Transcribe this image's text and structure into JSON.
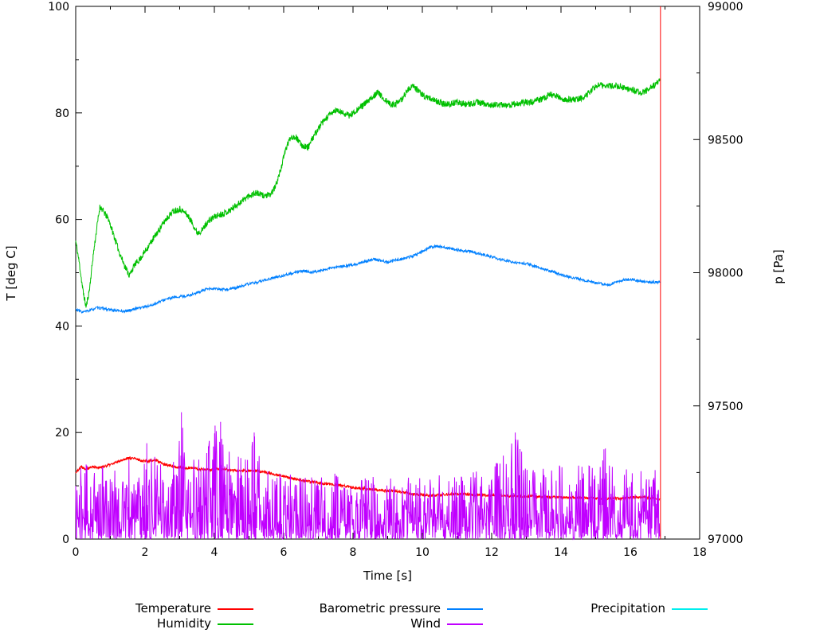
{
  "chart_data": {
    "type": "line",
    "title": "",
    "xlabel": "Time [s]",
    "ylabel": "T [deg C]",
    "y2label": "p [Pa]",
    "x_range": [
      0,
      18
    ],
    "y_range": [
      0,
      100
    ],
    "y2_range": [
      97000,
      99000
    ],
    "x_major_ticks": [
      0,
      2,
      4,
      6,
      8,
      10,
      12,
      14,
      16,
      18
    ],
    "x_minor_step": 1,
    "y_major_ticks": [
      0,
      20,
      40,
      60,
      80,
      100
    ],
    "y_minor_step": 10,
    "y2_major_ticks": [
      97000,
      97500,
      98000,
      98500,
      99000
    ],
    "y2_minor_step": 250,
    "grid": false,
    "legend_position": "below",
    "series": [
      {
        "name": "Temperature",
        "color": "#ff0000",
        "axis": "y",
        "type": "control",
        "seed": 22,
        "step": 0.008,
        "noise": 0.25,
        "points": [
          [
            0,
            12.5
          ],
          [
            0.15,
            13.6
          ],
          [
            0.3,
            13.2
          ],
          [
            0.5,
            13.6
          ],
          [
            0.7,
            13.4
          ],
          [
            0.9,
            13.8
          ],
          [
            1.1,
            14.2
          ],
          [
            1.3,
            14.8
          ],
          [
            1.5,
            15.2
          ],
          [
            1.7,
            15.1
          ],
          [
            1.9,
            14.7
          ],
          [
            2.1,
            14.6
          ],
          [
            2.3,
            14.9
          ],
          [
            2.5,
            14.1
          ],
          [
            2.7,
            13.8
          ],
          [
            2.9,
            13.5
          ],
          [
            3.1,
            13.3
          ],
          [
            3.3,
            13.4
          ],
          [
            3.5,
            13.2
          ],
          [
            3.7,
            13.1
          ],
          [
            3.9,
            13.0
          ],
          [
            4.1,
            13.2
          ],
          [
            4.3,
            13.1
          ],
          [
            4.5,
            12.9
          ],
          [
            4.7,
            12.8
          ],
          [
            4.9,
            12.8
          ],
          [
            5.1,
            12.8
          ],
          [
            5.3,
            12.7
          ],
          [
            5.6,
            12.4
          ],
          [
            5.9,
            11.9
          ],
          [
            6.2,
            11.4
          ],
          [
            6.5,
            11.0
          ],
          [
            6.8,
            10.8
          ],
          [
            7.1,
            10.5
          ],
          [
            7.4,
            10.2
          ],
          [
            7.7,
            10.0
          ],
          [
            8.0,
            9.7
          ],
          [
            8.3,
            9.5
          ],
          [
            8.6,
            9.3
          ],
          [
            8.9,
            9.1
          ],
          [
            9.2,
            9.0
          ],
          [
            9.5,
            8.7
          ],
          [
            9.8,
            8.4
          ],
          [
            10.1,
            8.2
          ],
          [
            10.4,
            8.2
          ],
          [
            10.7,
            8.4
          ],
          [
            11.0,
            8.5
          ],
          [
            11.3,
            8.4
          ],
          [
            11.6,
            8.3
          ],
          [
            11.9,
            8.2
          ],
          [
            12.2,
            8.2
          ],
          [
            12.5,
            8.1
          ],
          [
            12.8,
            8.0
          ],
          [
            13.2,
            8.0
          ],
          [
            13.6,
            7.9
          ],
          [
            14.0,
            7.8
          ],
          [
            14.4,
            7.8
          ],
          [
            14.8,
            7.7
          ],
          [
            15.2,
            7.6
          ],
          [
            15.6,
            7.6
          ],
          [
            16.0,
            7.8
          ],
          [
            16.3,
            7.9
          ],
          [
            16.6,
            7.7
          ],
          [
            16.85,
            7.5
          ]
        ]
      },
      {
        "name": "Humidity",
        "color": "#00c000",
        "axis": "y",
        "type": "control",
        "seed": 11,
        "step": 0.008,
        "noise": 0.6,
        "points": [
          [
            0,
            56
          ],
          [
            0.1,
            52
          ],
          [
            0.2,
            47
          ],
          [
            0.3,
            43.5
          ],
          [
            0.4,
            47
          ],
          [
            0.5,
            53
          ],
          [
            0.6,
            58
          ],
          [
            0.7,
            62.5
          ],
          [
            0.8,
            61.5
          ],
          [
            0.95,
            60
          ],
          [
            1.1,
            57
          ],
          [
            1.25,
            54
          ],
          [
            1.4,
            51.5
          ],
          [
            1.55,
            49.5
          ],
          [
            1.7,
            51.5
          ],
          [
            1.85,
            52.5
          ],
          [
            2.0,
            54
          ],
          [
            2.2,
            56
          ],
          [
            2.4,
            58
          ],
          [
            2.6,
            60
          ],
          [
            2.8,
            61.5
          ],
          [
            3.0,
            62
          ],
          [
            3.2,
            61
          ],
          [
            3.35,
            59.5
          ],
          [
            3.5,
            57.5
          ],
          [
            3.65,
            58
          ],
          [
            3.8,
            59.5
          ],
          [
            4.0,
            60.5
          ],
          [
            4.2,
            61
          ],
          [
            4.4,
            61.5
          ],
          [
            4.6,
            62.5
          ],
          [
            4.8,
            63.5
          ],
          [
            5.0,
            64.5
          ],
          [
            5.2,
            65
          ],
          [
            5.4,
            64.5
          ],
          [
            5.6,
            64.5
          ],
          [
            5.75,
            66
          ],
          [
            5.9,
            69
          ],
          [
            6.05,
            73
          ],
          [
            6.2,
            75.5
          ],
          [
            6.35,
            75.5
          ],
          [
            6.5,
            74
          ],
          [
            6.7,
            73.5
          ],
          [
            6.9,
            76
          ],
          [
            7.1,
            78
          ],
          [
            7.3,
            79.5
          ],
          [
            7.5,
            80.5
          ],
          [
            7.7,
            80
          ],
          [
            7.9,
            79.5
          ],
          [
            8.1,
            80.5
          ],
          [
            8.3,
            81.5
          ],
          [
            8.5,
            82.5
          ],
          [
            8.7,
            84
          ],
          [
            8.9,
            82.5
          ],
          [
            9.1,
            81.5
          ],
          [
            9.35,
            82
          ],
          [
            9.6,
            84.5
          ],
          [
            9.75,
            85
          ],
          [
            9.9,
            84
          ],
          [
            10.1,
            83
          ],
          [
            10.3,
            82.5
          ],
          [
            10.5,
            82
          ],
          [
            10.7,
            81.5
          ],
          [
            11.0,
            82
          ],
          [
            11.3,
            81.5
          ],
          [
            11.6,
            82
          ],
          [
            11.9,
            81.5
          ],
          [
            12.2,
            81.5
          ],
          [
            12.5,
            81.5
          ],
          [
            12.8,
            81.8
          ],
          [
            13.1,
            82
          ],
          [
            13.4,
            82.5
          ],
          [
            13.7,
            83.5
          ],
          [
            13.9,
            83
          ],
          [
            14.1,
            82.5
          ],
          [
            14.4,
            82.5
          ],
          [
            14.7,
            83
          ],
          [
            14.9,
            84.5
          ],
          [
            15.1,
            85.2
          ],
          [
            15.3,
            85
          ],
          [
            15.5,
            85.2
          ],
          [
            15.7,
            85
          ],
          [
            15.9,
            84.6
          ],
          [
            16.1,
            84.2
          ],
          [
            16.3,
            83.8
          ],
          [
            16.5,
            84.2
          ],
          [
            16.7,
            85.2
          ],
          [
            16.85,
            86
          ]
        ]
      },
      {
        "name": "Barometric pressure",
        "color": "#0080ff",
        "axis": "y2",
        "type": "control",
        "seed": 33,
        "step": 0.01,
        "noise": 5,
        "points": [
          [
            0,
            97862
          ],
          [
            0.2,
            97852
          ],
          [
            0.4,
            97858
          ],
          [
            0.6,
            97868
          ],
          [
            0.8,
            97866
          ],
          [
            1.0,
            97860
          ],
          [
            1.2,
            97858
          ],
          [
            1.4,
            97855
          ],
          [
            1.6,
            97860
          ],
          [
            1.8,
            97868
          ],
          [
            2.0,
            97872
          ],
          [
            2.2,
            97878
          ],
          [
            2.4,
            97890
          ],
          [
            2.6,
            97900
          ],
          [
            2.8,
            97906
          ],
          [
            3.0,
            97910
          ],
          [
            3.2,
            97913
          ],
          [
            3.4,
            97920
          ],
          [
            3.6,
            97930
          ],
          [
            3.8,
            97938
          ],
          [
            4.0,
            97940
          ],
          [
            4.2,
            97936
          ],
          [
            4.4,
            97938
          ],
          [
            4.6,
            97942
          ],
          [
            4.8,
            97950
          ],
          [
            5.0,
            97958
          ],
          [
            5.2,
            97963
          ],
          [
            5.4,
            97970
          ],
          [
            5.6,
            97978
          ],
          [
            5.8,
            97984
          ],
          [
            6.0,
            97990
          ],
          [
            6.2,
            97997
          ],
          [
            6.4,
            98003
          ],
          [
            6.6,
            98006
          ],
          [
            6.8,
            98002
          ],
          [
            7.0,
            98006
          ],
          [
            7.2,
            98012
          ],
          [
            7.4,
            98018
          ],
          [
            7.6,
            98022
          ],
          [
            7.8,
            98026
          ],
          [
            8.0,
            98030
          ],
          [
            8.2,
            98036
          ],
          [
            8.4,
            98044
          ],
          [
            8.6,
            98050
          ],
          [
            8.8,
            98046
          ],
          [
            9.0,
            98040
          ],
          [
            9.2,
            98046
          ],
          [
            9.4,
            98052
          ],
          [
            9.6,
            98058
          ],
          [
            9.8,
            98066
          ],
          [
            10.0,
            98080
          ],
          [
            10.2,
            98094
          ],
          [
            10.4,
            98100
          ],
          [
            10.6,
            98096
          ],
          [
            10.8,
            98090
          ],
          [
            11.0,
            98086
          ],
          [
            11.2,
            98082
          ],
          [
            11.4,
            98080
          ],
          [
            11.6,
            98072
          ],
          [
            11.8,
            98066
          ],
          [
            12.0,
            98060
          ],
          [
            12.2,
            98052
          ],
          [
            12.4,
            98046
          ],
          [
            12.6,
            98040
          ],
          [
            12.8,
            98037
          ],
          [
            13.0,
            98034
          ],
          [
            13.2,
            98026
          ],
          [
            13.4,
            98018
          ],
          [
            13.6,
            98010
          ],
          [
            13.8,
            98002
          ],
          [
            14.0,
            97992
          ],
          [
            14.2,
            97986
          ],
          [
            14.4,
            97980
          ],
          [
            14.6,
            97973
          ],
          [
            14.8,
            97969
          ],
          [
            15.0,
            97962
          ],
          [
            15.2,
            97957
          ],
          [
            15.4,
            97956
          ],
          [
            15.6,
            97964
          ],
          [
            15.8,
            97972
          ],
          [
            16.0,
            97976
          ],
          [
            16.2,
            97971
          ],
          [
            16.4,
            97966
          ],
          [
            16.6,
            97963
          ],
          [
            16.85,
            97966
          ]
        ]
      },
      {
        "name": "Wind",
        "color": "#c000ff",
        "axis": "y",
        "type": "noise",
        "seed": 44,
        "step": 0.012,
        "power": 1.9,
        "x_range": [
          0,
          16.85
        ],
        "envelope": [
          [
            0,
            14
          ],
          [
            0.8,
            14
          ],
          [
            1.6,
            15
          ],
          [
            2.4,
            16
          ],
          [
            2.95,
            15
          ],
          [
            3.05,
            24
          ],
          [
            3.15,
            15
          ],
          [
            3.7,
            16
          ],
          [
            3.95,
            21
          ],
          [
            4.25,
            22
          ],
          [
            4.5,
            16
          ],
          [
            5.0,
            16
          ],
          [
            5.15,
            20
          ],
          [
            5.35,
            15
          ],
          [
            5.8,
            13
          ],
          [
            6.5,
            12
          ],
          [
            7.5,
            12.5
          ],
          [
            9,
            12
          ],
          [
            10.5,
            12
          ],
          [
            11.5,
            13
          ],
          [
            12.2,
            15
          ],
          [
            12.68,
            20
          ],
          [
            13.0,
            15
          ],
          [
            13.8,
            14
          ],
          [
            14.6,
            14
          ],
          [
            15.0,
            15
          ],
          [
            15.25,
            17
          ],
          [
            15.5,
            14
          ],
          [
            16.0,
            13
          ],
          [
            16.5,
            13.5
          ],
          [
            16.85,
            14
          ]
        ],
        "spikes": [
          [
            2.05,
            18
          ],
          [
            3.05,
            23.8
          ],
          [
            4.02,
            21.3
          ],
          [
            4.18,
            22
          ],
          [
            5.15,
            20
          ],
          [
            12.68,
            20
          ],
          [
            15.28,
            17
          ]
        ]
      },
      {
        "name": "Precipitation",
        "color": "#00eeee",
        "axis": "y",
        "type": "control",
        "seed": 55,
        "step": 0.05,
        "noise": 0,
        "points": []
      }
    ],
    "annotations": [
      {
        "type": "vline",
        "x": 16.87,
        "y1": 0,
        "y2": 100,
        "color": "#ff0000"
      }
    ],
    "legend": [
      {
        "label": "Temperature",
        "color": "#ff0000",
        "row": 0,
        "col": 0
      },
      {
        "label": "Barometric pressure",
        "color": "#0080ff",
        "row": 0,
        "col": 1
      },
      {
        "label": "Precipitation",
        "color": "#00eeee",
        "row": 0,
        "col": 2
      },
      {
        "label": "Humidity",
        "color": "#00c000",
        "row": 1,
        "col": 0
      },
      {
        "label": "Wind",
        "color": "#c000ff",
        "row": 1,
        "col": 1
      }
    ]
  }
}
